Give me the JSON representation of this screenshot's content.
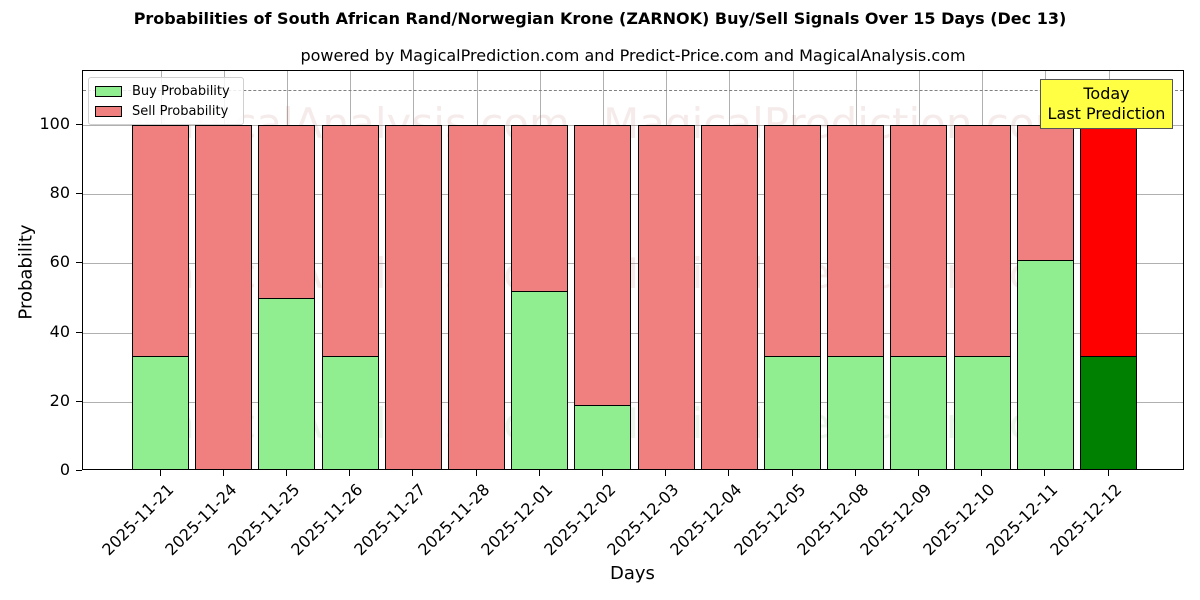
{
  "chart_data": {
    "type": "bar",
    "stacked": true,
    "title": "Probabilities of South African Rand/Norwegian Krone (ZARNOK) Buy/Sell Signals Over 15 Days (Dec 13)",
    "subtitle": "powered by MagicalPrediction.com and Predict-Price.com and MagicalAnalysis.com",
    "xlabel": "Days",
    "ylabel": "Probability",
    "ylim": [
      0,
      115
    ],
    "yticks": [
      0,
      20,
      40,
      60,
      80,
      100
    ],
    "grid": true,
    "legend_position": "upper left",
    "reference_line": {
      "y": 110,
      "style": "dashed",
      "color": "#808080"
    },
    "categories": [
      "2025-11-21",
      "2025-11-24",
      "2025-11-25",
      "2025-11-26",
      "2025-11-27",
      "2025-11-28",
      "2025-12-01",
      "2025-12-02",
      "2025-12-03",
      "2025-12-04",
      "2025-12-05",
      "2025-12-08",
      "2025-12-09",
      "2025-12-10",
      "2025-12-11",
      "2025-12-12"
    ],
    "series": [
      {
        "name": "Buy Probability",
        "color": "#90ee90",
        "values": [
          33.3,
          0,
          50.0,
          33.3,
          0,
          0,
          52.0,
          19.0,
          0,
          0,
          33.3,
          33.3,
          33.3,
          33.3,
          61.1,
          33.3
        ]
      },
      {
        "name": "Sell Probability",
        "color": "#f08080",
        "values": [
          66.7,
          100,
          50.0,
          66.7,
          100,
          100,
          48.0,
          81.0,
          100,
          100,
          66.7,
          66.7,
          66.7,
          66.7,
          38.9,
          66.7
        ]
      }
    ],
    "highlight": {
      "index": 15,
      "buy_color": "#008000",
      "sell_color": "#ff0000",
      "annotation": "Today\nLast Prediction",
      "annotation_bg": "#ffff44"
    },
    "watermarks": [
      "MagicalAnalysis.com",
      "MagicalPrediction.com"
    ]
  },
  "legend": {
    "buy_label": "Buy Probability",
    "sell_label": "Sell Probability"
  },
  "annotation": {
    "line1": "Today",
    "line2": "Last Prediction"
  }
}
